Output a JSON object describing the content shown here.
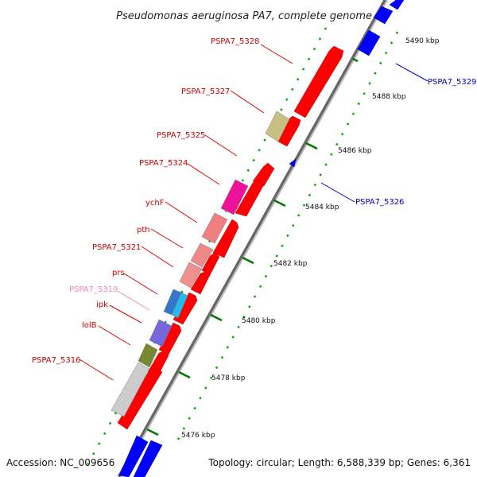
{
  "title": "Pseudomonas aeruginosa PA7, complete genome",
  "footer": {
    "accession": "Accession: NC_009656",
    "topology": "Topology: circular; Length: 6,588,339 bp; Genes: 6,361"
  },
  "colors": {
    "forward": "#ff0000",
    "reverse": "#0000ff",
    "leader_red": "#dd0000",
    "leader_blue": "#0000cc",
    "leader_pink": "#ee88bb",
    "tick": "#007700",
    "backbone": "#888888"
  },
  "axis": {
    "unit": "kbp",
    "ticks": [
      {
        "label": "5476 kbp",
        "value": 5476
      },
      {
        "label": "5478 kbp",
        "value": 5478
      },
      {
        "label": "5480 kbp",
        "value": 5480
      },
      {
        "label": "5482 kbp",
        "value": 5482
      },
      {
        "label": "5484 kbp",
        "value": 5484
      },
      {
        "label": "5486 kbp",
        "value": 5486
      },
      {
        "label": "5488 kbp",
        "value": 5488
      },
      {
        "label": "5490 kbp",
        "value": 5490
      }
    ]
  },
  "genes": [
    {
      "label": "PSPA7_5328",
      "strand": "forward",
      "color_key": "leader_red"
    },
    {
      "label": "PSPA7_5327",
      "strand": "forward",
      "color_key": "leader_red"
    },
    {
      "label": "PSPA7_5325",
      "strand": "forward",
      "color_key": "leader_red"
    },
    {
      "label": "PSPA7_5324",
      "strand": "forward",
      "color_key": "leader_red"
    },
    {
      "label": "ychF",
      "strand": "forward",
      "color_key": "leader_red"
    },
    {
      "label": "pth",
      "strand": "forward",
      "color_key": "leader_red"
    },
    {
      "label": "PSPA7_5321",
      "strand": "forward",
      "color_key": "leader_red"
    },
    {
      "label": "prs",
      "strand": "forward",
      "color_key": "leader_red"
    },
    {
      "label": "PSPA7_5319",
      "strand": "forward",
      "color_key": "leader_pink"
    },
    {
      "label": "ipk",
      "strand": "forward",
      "color_key": "leader_red"
    },
    {
      "label": "lolB",
      "strand": "forward",
      "color_key": "leader_red"
    },
    {
      "label": "PSPA7_5316",
      "strand": "forward",
      "color_key": "leader_red"
    },
    {
      "label": "PSPA7_5329",
      "strand": "reverse",
      "color_key": "leader_blue"
    },
    {
      "label": "PSPA7_5326",
      "strand": "reverse",
      "color_key": "leader_blue"
    }
  ]
}
